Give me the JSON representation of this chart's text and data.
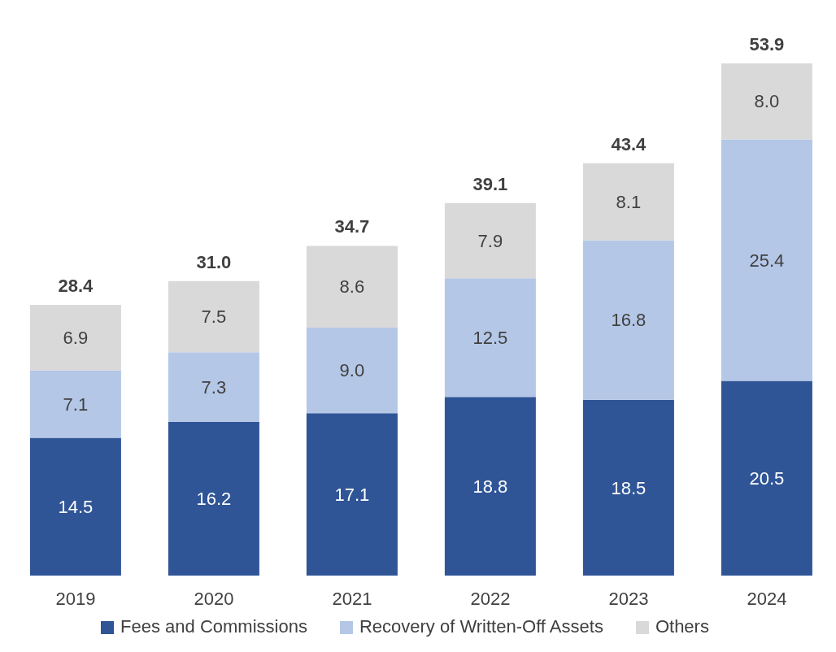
{
  "chart_data": {
    "type": "bar",
    "stacked": true,
    "categories": [
      "2019",
      "2020",
      "2021",
      "2022",
      "2023",
      "2024"
    ],
    "series": [
      {
        "name": "Fees and Commissions",
        "color": "#2f5597",
        "values": [
          14.5,
          16.2,
          17.1,
          18.8,
          18.5,
          20.5
        ],
        "value_labels": [
          "14.5",
          "16.2",
          "17.1",
          "18.8",
          "18.5",
          "20.5"
        ]
      },
      {
        "name": "Recovery of Written-Off Assets",
        "color": "#b4c7e7",
        "values": [
          7.1,
          7.3,
          9.0,
          12.5,
          16.8,
          25.4
        ],
        "value_labels": [
          "7.1",
          "7.3",
          "9.0",
          "12.5",
          "16.8",
          "25.4"
        ]
      },
      {
        "name": "Others",
        "color": "#d9d9d9",
        "values": [
          6.9,
          7.5,
          8.6,
          7.9,
          8.1,
          8.0
        ],
        "value_labels": [
          "6.9",
          "7.5",
          "8.6",
          "7.9",
          "8.1",
          "8.0"
        ]
      }
    ],
    "totals": [
      "28.4",
      "31.0",
      "34.7",
      "39.1",
      "43.4",
      "53.9"
    ],
    "legend": "bottom",
    "grid": false
  }
}
